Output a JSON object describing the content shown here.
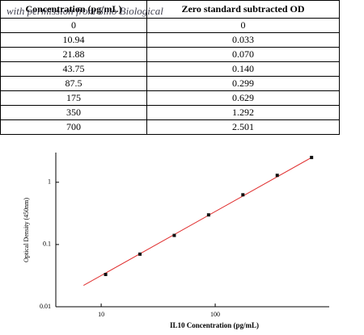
{
  "table": {
    "header": [
      "Concentration (pg/mL)",
      "Zero standard subtracted OD"
    ],
    "rows": [
      [
        "0",
        "0"
      ],
      [
        "10.94",
        "0.033"
      ],
      [
        "21.88",
        "0.070"
      ],
      [
        "43.75",
        "0.140"
      ],
      [
        "87.5",
        "0.299"
      ],
      [
        "175",
        "0.629"
      ],
      [
        "350",
        "1.292"
      ],
      [
        "700",
        "2.501"
      ]
    ]
  },
  "watermark": "with permission from Sino Biological",
  "chart_data": {
    "type": "scatter",
    "log_x": true,
    "log_y": true,
    "x_label": "IL10 Concentration (pg/mL)",
    "y_label": "Optical Density (450nm)",
    "x": [
      10.94,
      21.88,
      43.75,
      87.5,
      175,
      350,
      700
    ],
    "values": [
      0.033,
      0.07,
      0.14,
      0.299,
      0.629,
      1.292,
      2.501
    ],
    "color": "#111111",
    "fit": {
      "color": "#e03030",
      "x": [
        7,
        700
      ],
      "values": [
        0.022,
        2.5
      ]
    },
    "xlim": [
      4,
      1000
    ],
    "ylim": [
      0.01,
      3
    ],
    "xticks": [
      10,
      100
    ],
    "yticks": [
      0.01,
      0.1,
      1
    ]
  }
}
